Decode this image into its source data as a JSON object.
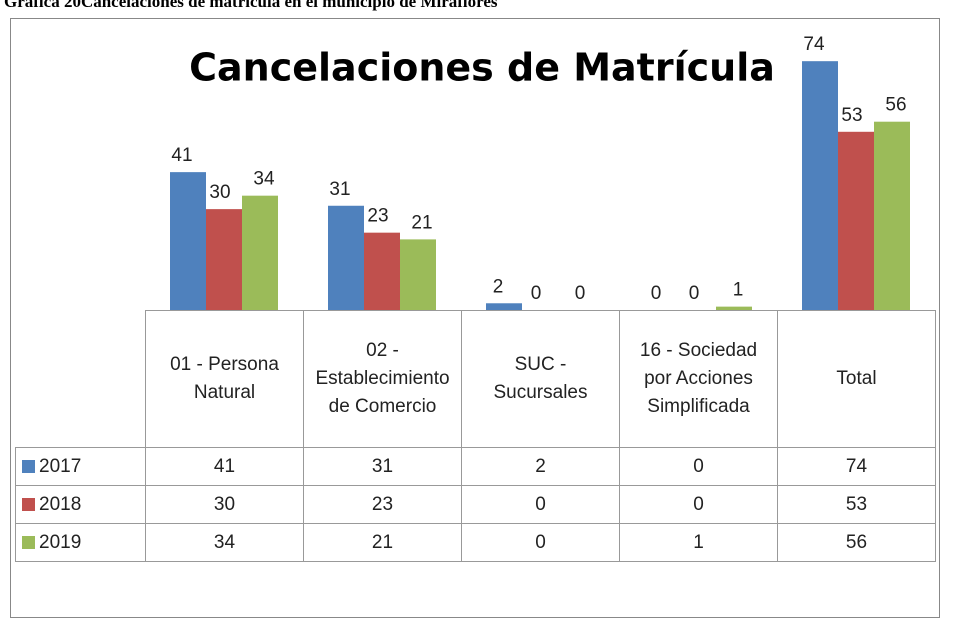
{
  "caption": "Gráfica  20Cancelaciones  de  matrícula  en el municipio  de  Miraflores",
  "chart_data": {
    "type": "bar",
    "title": "Cancelaciones de Matrícula",
    "categories": [
      "01 - Persona Natural",
      "02 - Establecimiento de Comercio",
      "SUC - Sucursales",
      "16 - Sociedad por Acciones Simplificada",
      "Total"
    ],
    "series": [
      {
        "name": "2017",
        "color": "#4f81bd",
        "values": [
          41,
          31,
          2,
          0,
          74
        ]
      },
      {
        "name": "2018",
        "color": "#c0504d",
        "values": [
          30,
          23,
          0,
          0,
          53
        ]
      },
      {
        "name": "2019",
        "color": "#9bbb59",
        "values": [
          34,
          21,
          0,
          1,
          56
        ]
      }
    ],
    "ylim": [
      0,
      80
    ]
  }
}
